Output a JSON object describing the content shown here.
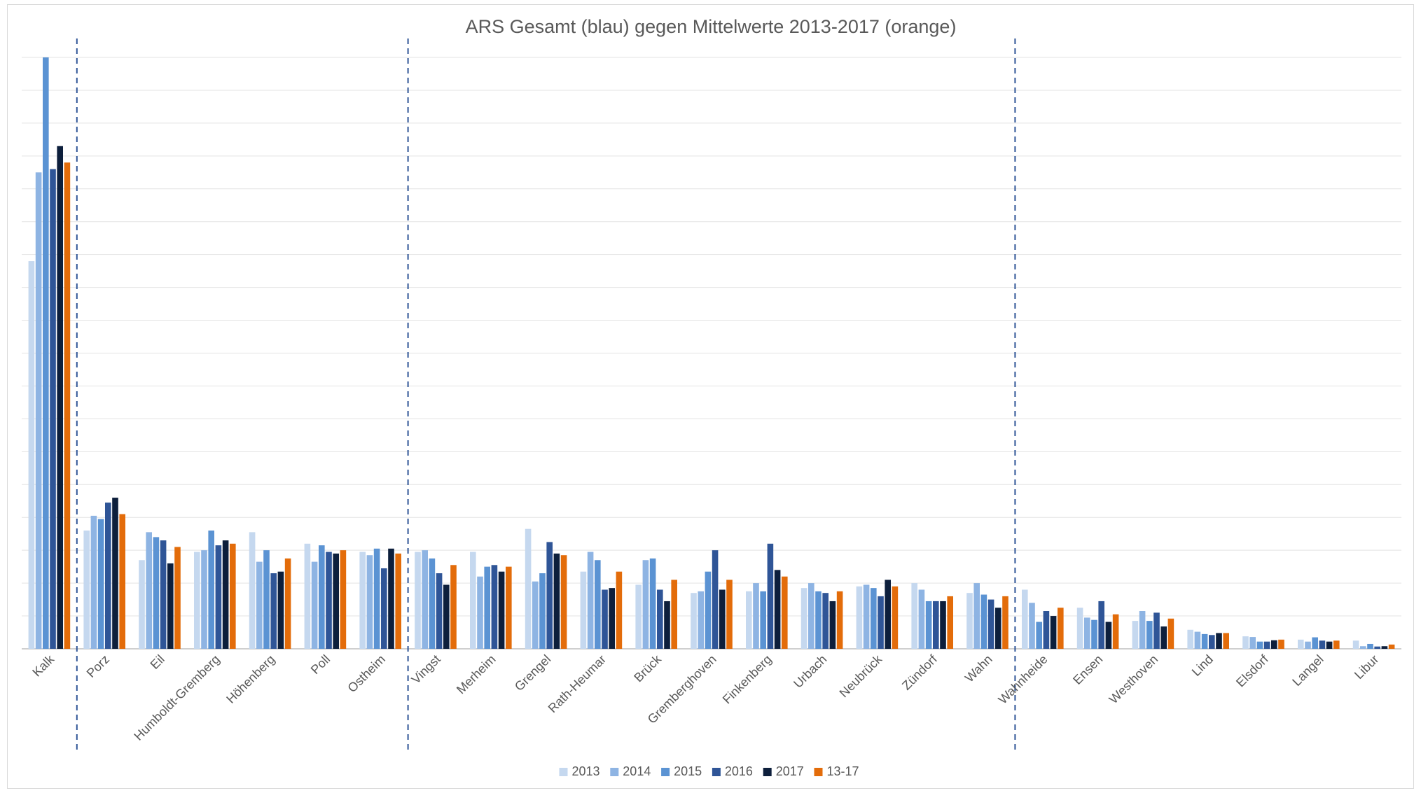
{
  "chart_data": {
    "type": "bar",
    "title": "ARS Gesamt (blau) gegen Mittelwerte 2013-2017 (orange)",
    "xlabel": "",
    "ylabel": "",
    "ylim": [
      0,
      18
    ],
    "grid": true,
    "legend_position": "bottom",
    "group_dividers_after": [
      "Kalk",
      "Ostheim",
      "Wahn"
    ],
    "categories": [
      "Kalk",
      "Porz",
      "Eil",
      "Humboldt-Gremberg",
      "Höhenberg",
      "Poll",
      "Ostheim",
      "Vingst",
      "Merheim",
      "Grengel",
      "Rath-Heumar",
      "Brück",
      "Gremberghoven",
      "Finkenberg",
      "Urbach",
      "Neubrück",
      "Zündorf",
      "Wahn",
      "Wahnheide",
      "Ensen",
      "Westhoven",
      "Lind",
      "Elsdorf",
      "Langel",
      "Libur"
    ],
    "series": [
      {
        "name": "2013",
        "color": "#c5d8ef",
        "values": [
          11.8,
          3.6,
          2.7,
          2.95,
          3.55,
          3.2,
          2.95,
          2.95,
          2.95,
          3.65,
          2.35,
          1.95,
          1.7,
          1.75,
          1.85,
          1.9,
          2.0,
          1.7,
          1.8,
          1.25,
          0.85,
          0.58,
          0.38,
          0.28,
          0.25
        ]
      },
      {
        "name": "2014",
        "color": "#8eb4e3",
        "values": [
          14.5,
          4.05,
          3.55,
          3.0,
          2.65,
          2.65,
          2.85,
          3.0,
          2.2,
          2.05,
          2.95,
          2.7,
          1.75,
          2.0,
          2.0,
          1.95,
          1.8,
          2.0,
          1.4,
          0.95,
          1.15,
          0.52,
          0.36,
          0.22,
          0.08
        ]
      },
      {
        "name": "2015",
        "color": "#5b93d3",
        "values": [
          18.0,
          3.95,
          3.4,
          3.6,
          3.0,
          3.15,
          3.05,
          2.75,
          2.5,
          2.3,
          2.7,
          2.75,
          2.35,
          1.75,
          1.75,
          1.85,
          1.45,
          1.65,
          0.82,
          0.88,
          0.85,
          0.45,
          0.22,
          0.35,
          0.15
        ]
      },
      {
        "name": "2016",
        "color": "#2f5597",
        "values": [
          14.6,
          4.45,
          3.3,
          3.15,
          2.3,
          2.95,
          2.45,
          2.3,
          2.55,
          3.25,
          1.8,
          1.8,
          3.0,
          3.2,
          1.7,
          1.6,
          1.45,
          1.5,
          1.15,
          1.45,
          1.1,
          0.42,
          0.22,
          0.25,
          0.07
        ]
      },
      {
        "name": "2017",
        "color": "#0d1f3c",
        "values": [
          15.3,
          4.6,
          2.6,
          3.3,
          2.35,
          2.9,
          3.05,
          1.95,
          2.35,
          2.9,
          1.85,
          1.45,
          1.8,
          2.4,
          1.45,
          2.1,
          1.45,
          1.25,
          1.0,
          0.82,
          0.68,
          0.48,
          0.26,
          0.22,
          0.08
        ]
      },
      {
        "name": "13-17",
        "color": "#e36c0a",
        "values": [
          14.8,
          4.1,
          3.1,
          3.2,
          2.75,
          3.0,
          2.9,
          2.55,
          2.5,
          2.85,
          2.35,
          2.1,
          2.1,
          2.2,
          1.75,
          1.9,
          1.6,
          1.6,
          1.25,
          1.05,
          0.92,
          0.48,
          0.28,
          0.25,
          0.13
        ]
      }
    ]
  }
}
